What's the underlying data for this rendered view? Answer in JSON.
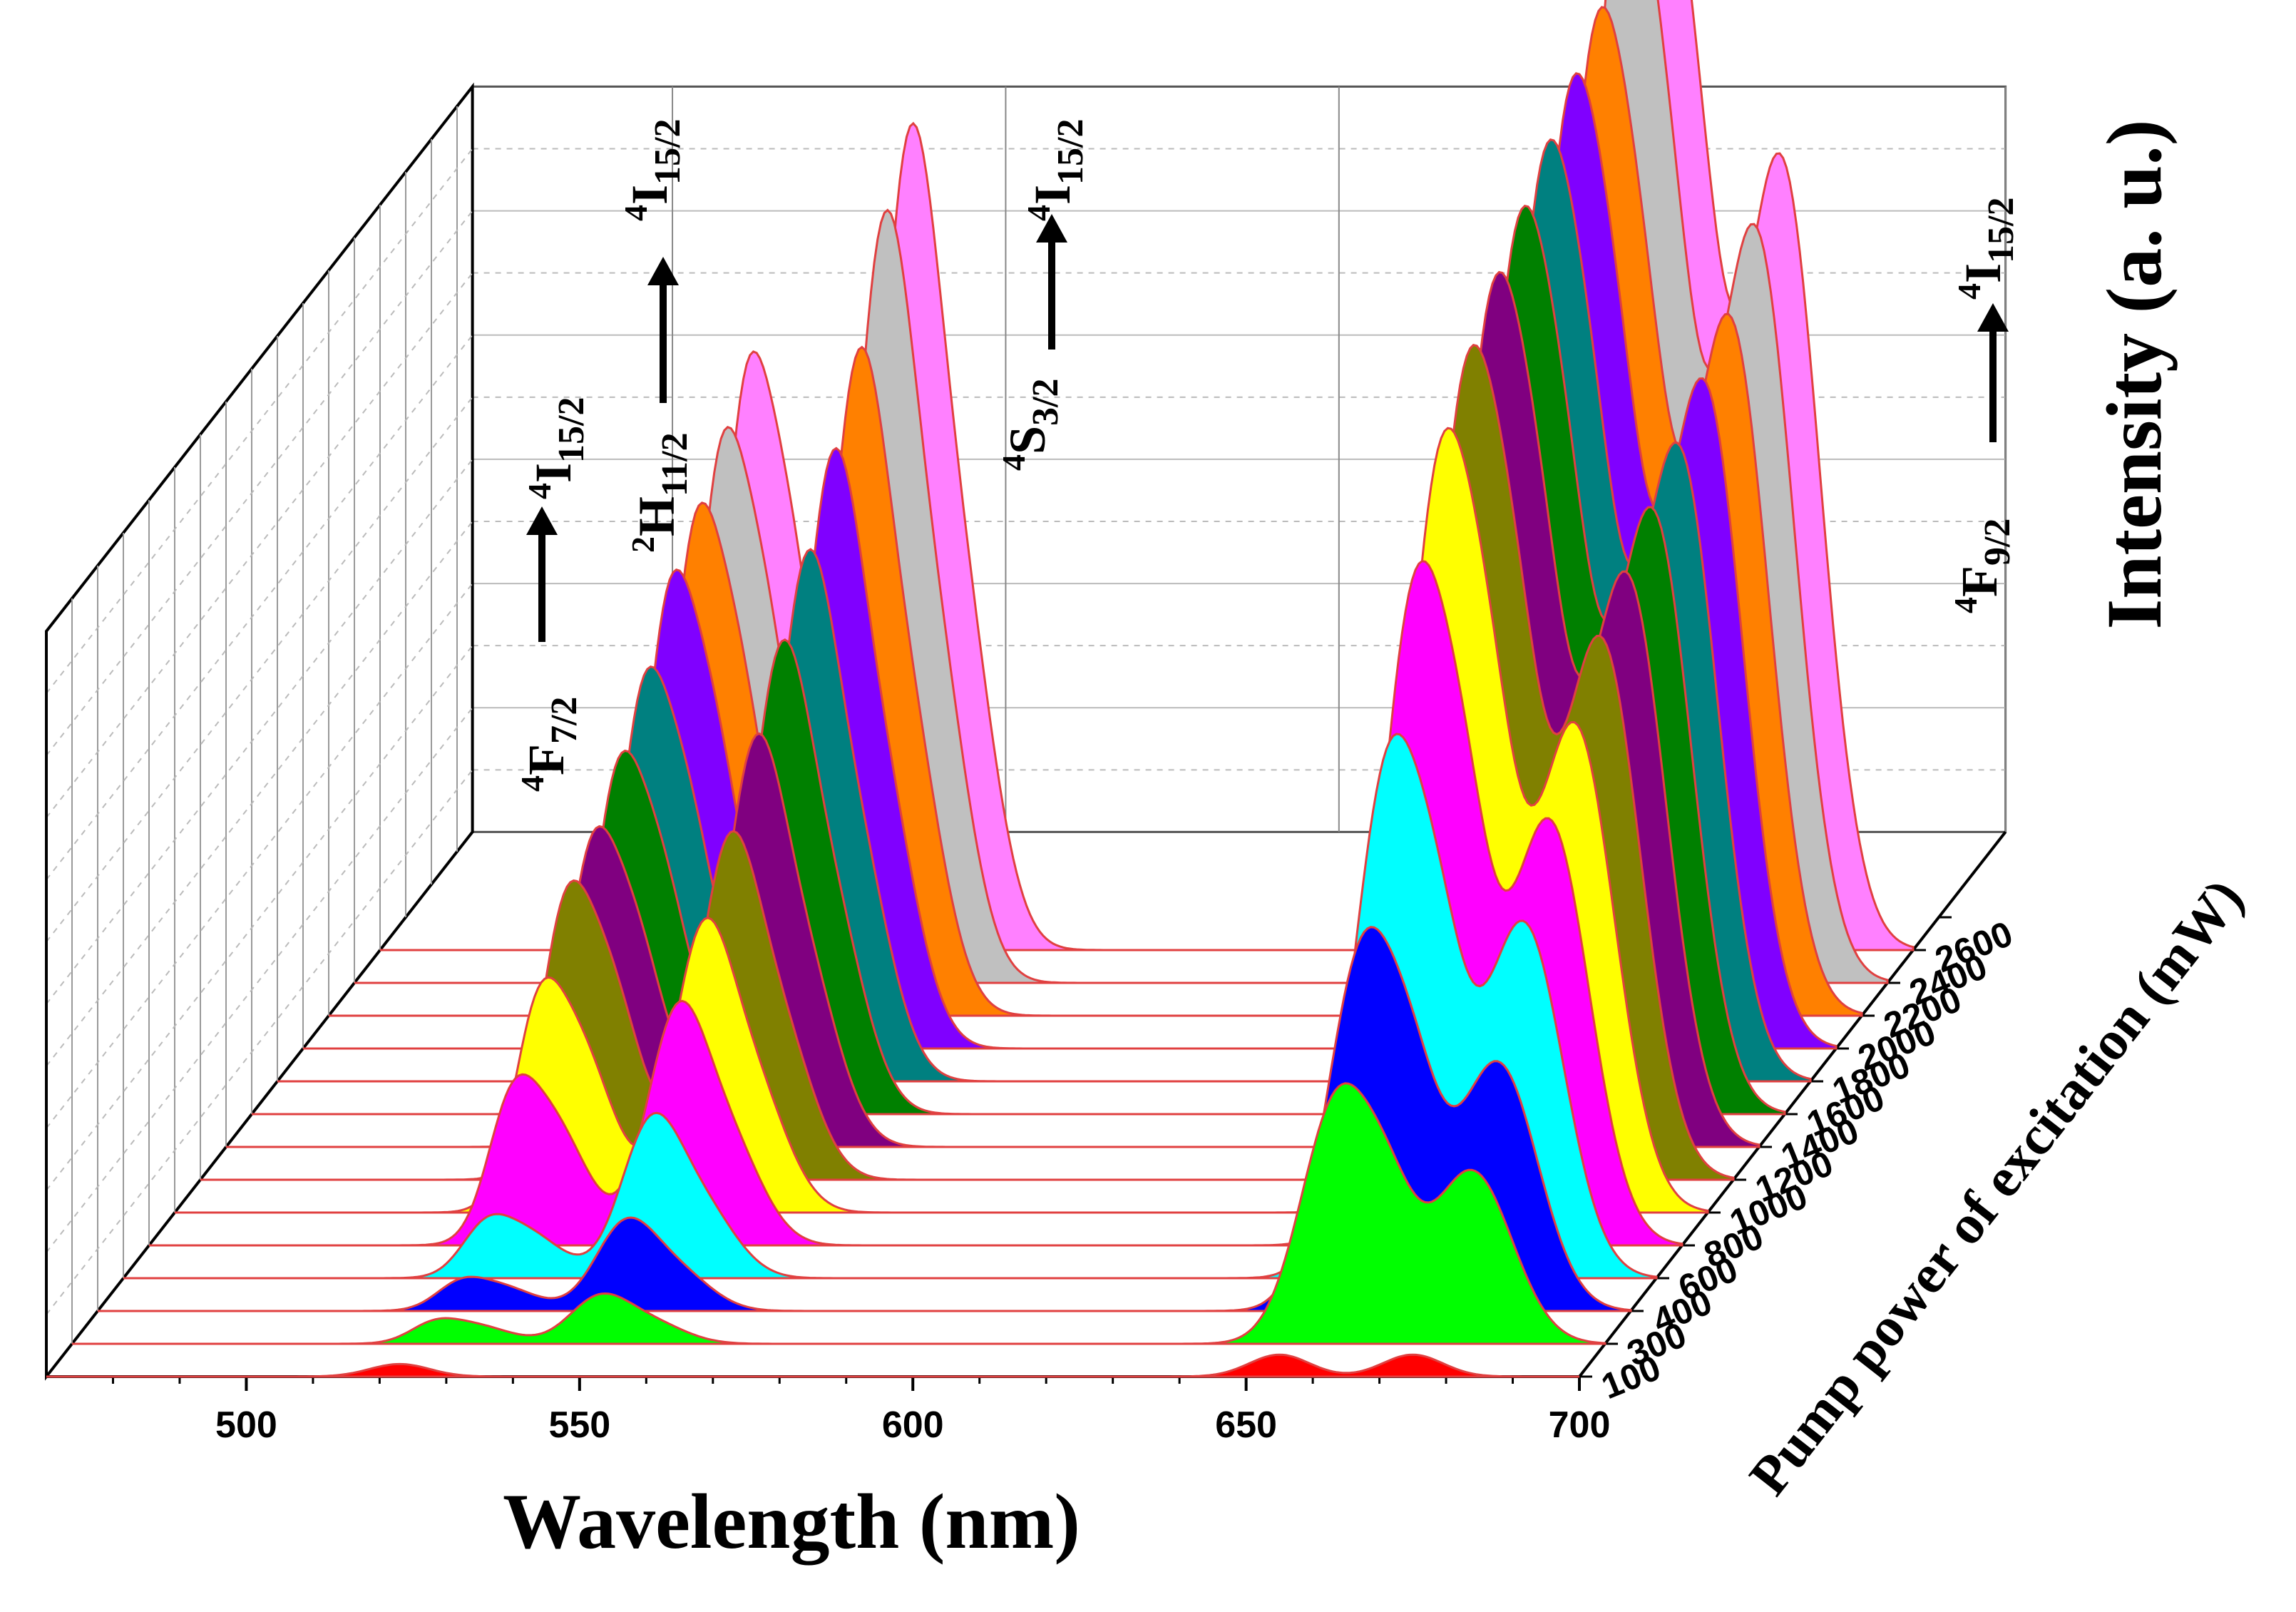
{
  "chart_data": {
    "type": "area",
    "xlabel": "Wavelength (nm)",
    "ylabel": "Intensity (a. u.)",
    "zlabel": "Pump power of excitation (mW)",
    "xlim": [
      470,
      700
    ],
    "x_ticks": [
      500,
      550,
      600,
      650,
      700
    ],
    "z_ticks": [
      100,
      300,
      400,
      600,
      800,
      1000,
      1200,
      1400,
      1600,
      1800,
      2000,
      2200,
      2400,
      2600
    ],
    "grid": true,
    "series": [
      {
        "name": "100",
        "color": "#ff0000",
        "peaks": [
          {
            "wl": 523,
            "h": 0.04
          },
          {
            "wl": 655,
            "h": 0.07
          },
          {
            "wl": 675,
            "h": 0.07
          }
        ]
      },
      {
        "name": "300",
        "color": "#00ff00",
        "peaks": [
          {
            "wl": 530,
            "h": 0.06
          },
          {
            "wl": 549,
            "h": 0.14
          },
          {
            "wl": 660,
            "h": 0.78
          },
          {
            "wl": 680,
            "h": 0.55
          }
        ]
      },
      {
        "name": "400",
        "color": "#0000ff",
        "peaks": [
          {
            "wl": 530,
            "h": 0.08
          },
          {
            "wl": 549,
            "h": 0.26
          },
          {
            "wl": 660,
            "h": 1.15
          },
          {
            "wl": 680,
            "h": 0.79
          }
        ]
      },
      {
        "name": "600",
        "color": "#00ffff",
        "peaks": [
          {
            "wl": 530,
            "h": 0.15
          },
          {
            "wl": 549,
            "h": 0.46
          },
          {
            "wl": 660,
            "h": 1.63
          },
          {
            "wl": 680,
            "h": 1.13
          }
        ]
      },
      {
        "name": "800",
        "color": "#ff00ff",
        "peaks": [
          {
            "wl": 530,
            "h": 0.4
          },
          {
            "wl": 549,
            "h": 0.68
          },
          {
            "wl": 660,
            "h": 2.05
          },
          {
            "wl": 680,
            "h": 1.35
          }
        ]
      },
      {
        "name": "1000",
        "color": "#ffff00",
        "peaks": [
          {
            "wl": 530,
            "h": 0.55
          },
          {
            "wl": 549,
            "h": 0.82
          },
          {
            "wl": 660,
            "h": 2.35
          },
          {
            "wl": 680,
            "h": 1.55
          }
        ]
      },
      {
        "name": "1200",
        "color": "#808000",
        "peaks": [
          {
            "wl": 530,
            "h": 0.7
          },
          {
            "wl": 549,
            "h": 0.97
          },
          {
            "wl": 660,
            "h": 2.5
          },
          {
            "wl": 680,
            "h": 1.72
          }
        ]
      },
      {
        "name": "1400",
        "color": "#800080",
        "peaks": [
          {
            "wl": 530,
            "h": 0.75
          },
          {
            "wl": 549,
            "h": 1.15
          },
          {
            "wl": 660,
            "h": 2.62
          },
          {
            "wl": 680,
            "h": 1.82
          }
        ]
      },
      {
        "name": "1600",
        "color": "#008000",
        "peaks": [
          {
            "wl": 530,
            "h": 0.85
          },
          {
            "wl": 549,
            "h": 1.32
          },
          {
            "wl": 660,
            "h": 2.72
          },
          {
            "wl": 680,
            "h": 1.92
          }
        ]
      },
      {
        "name": "1800",
        "color": "#008080",
        "peaks": [
          {
            "wl": 530,
            "h": 0.97
          },
          {
            "wl": 549,
            "h": 1.48
          },
          {
            "wl": 660,
            "h": 2.82
          },
          {
            "wl": 680,
            "h": 2.02
          }
        ]
      },
      {
        "name": "2000",
        "color": "#8000ff",
        "peaks": [
          {
            "wl": 530,
            "h": 1.12
          },
          {
            "wl": 549,
            "h": 1.67
          },
          {
            "wl": 660,
            "h": 2.92
          },
          {
            "wl": 680,
            "h": 2.12
          }
        ]
      },
      {
        "name": "2200",
        "color": "#ff8000",
        "peaks": [
          {
            "wl": 530,
            "h": 1.2
          },
          {
            "wl": 549,
            "h": 1.86
          },
          {
            "wl": 660,
            "h": 3.02
          },
          {
            "wl": 680,
            "h": 2.22
          }
        ]
      },
      {
        "name": "2400",
        "color": "#c0c0c0",
        "peaks": [
          {
            "wl": 530,
            "h": 1.3
          },
          {
            "wl": 549,
            "h": 2.15
          },
          {
            "wl": 660,
            "h": 3.37
          },
          {
            "wl": 680,
            "h": 2.4
          }
        ]
      },
      {
        "name": "2600",
        "color": "#ff80ff",
        "peaks": [
          {
            "wl": 530,
            "h": 1.4
          },
          {
            "wl": 549,
            "h": 2.3
          },
          {
            "wl": 660,
            "h": 3.5
          },
          {
            "wl": 680,
            "h": 2.52
          }
        ]
      }
    ],
    "annotations": [
      {
        "sup": "4",
        "main": "I",
        "sub": "15/2",
        "arrow": true,
        "lower_sup": "4",
        "lower_main": "F",
        "lower_sub": "7/2"
      },
      {
        "sup": "4",
        "main": "I",
        "sub": "15/2",
        "arrow": true,
        "lower_sup": "2",
        "lower_main": "H",
        "lower_sub": "11/2"
      },
      {
        "sup": "4",
        "main": "I",
        "sub": "15/2",
        "arrow": true,
        "lower_sup": "4",
        "lower_main": "S",
        "lower_sub": "3/2"
      },
      {
        "sup": "4",
        "main": "I",
        "sub": "15/2",
        "arrow": true,
        "lower_sup": "4",
        "lower_main": "F",
        "lower_sub": "9/2"
      }
    ]
  }
}
